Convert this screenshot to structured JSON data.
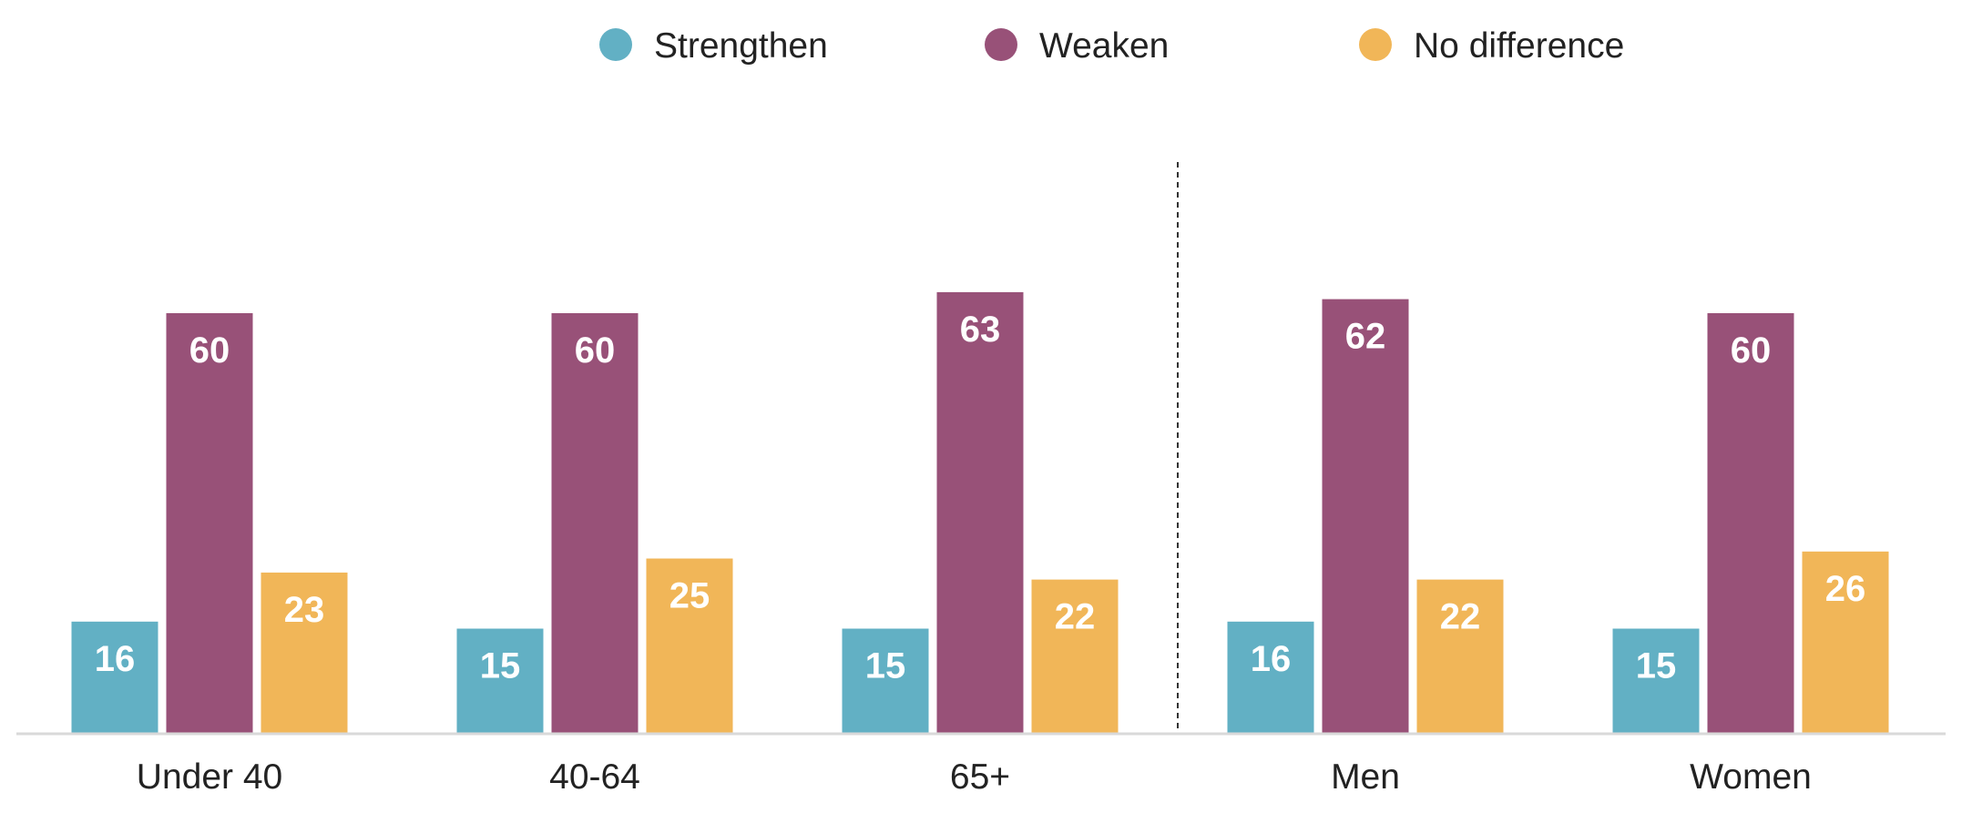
{
  "colors": {
    "strengthen": "#62b0c4",
    "weaken": "#985178",
    "no_difference": "#f1b658",
    "axis": "#d9d9d9",
    "separator": "#333333"
  },
  "legend": {
    "strengthen": "Strengthen",
    "weaken": "Weaken",
    "no_difference": "No difference"
  },
  "chart_data": {
    "type": "bar",
    "categories": [
      "Under 40",
      "40-64",
      "65+",
      "Men",
      "Women"
    ],
    "series": [
      {
        "name": "Strengthen",
        "color": "#62b0c4",
        "values": [
          16,
          15,
          15,
          16,
          15
        ]
      },
      {
        "name": "Weaken",
        "color": "#985178",
        "values": [
          60,
          60,
          63,
          62,
          60
        ]
      },
      {
        "name": "No difference",
        "color": "#f1b658",
        "values": [
          23,
          25,
          22,
          22,
          26
        ]
      }
    ],
    "title": "",
    "xlabel": "",
    "ylabel": "",
    "ylim": [
      0,
      70
    ],
    "grid": false,
    "legend_position": "top",
    "group_separator_after_category": "65+"
  }
}
